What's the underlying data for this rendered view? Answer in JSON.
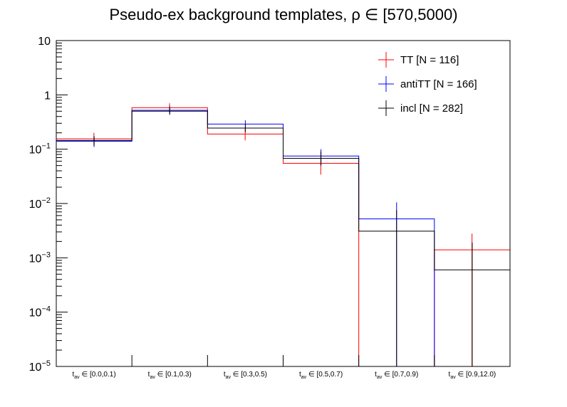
{
  "chart_data": {
    "type": "step-histogram",
    "title": "Pseudo-ex background templates, ρ ∈ [570,5000)",
    "yscale": "log",
    "ylim": [
      1e-05,
      10
    ],
    "y_tick_labels": [
      {
        "base": "10",
        "exp": ""
      },
      {
        "base": "1",
        "exp": ""
      },
      {
        "base": "10",
        "exp": "−1"
      },
      {
        "base": "10",
        "exp": "−2"
      },
      {
        "base": "10",
        "exp": "−3"
      },
      {
        "base": "10",
        "exp": "−4"
      },
      {
        "base": "10",
        "exp": "−5"
      }
    ],
    "y_tick_values": [
      10,
      1,
      0.1,
      0.01,
      0.001,
      0.0001,
      1e-05
    ],
    "categories": [
      {
        "var": "t",
        "sub": "av",
        "range": " ∈ [0.0,0.1)"
      },
      {
        "var": "t",
        "sub": "av",
        "range": " ∈ [0.1,0.3)"
      },
      {
        "var": "t",
        "sub": "av",
        "range": " ∈ [0.3,0.5)"
      },
      {
        "var": "t",
        "sub": "av",
        "range": " ∈ [0.5,0.7)"
      },
      {
        "var": "t",
        "sub": "av",
        "range": " ∈ [0.7,0.9)"
      },
      {
        "var": "t",
        "sub": "av",
        "range": " ∈ [0.9,12.0)"
      }
    ],
    "series": [
      {
        "name": "TT [N = 116]",
        "color": "#ff0000",
        "xoffset": -0.25,
        "values": [
          0.155,
          0.58,
          0.19,
          0.055,
          0.0,
          0.0014
        ],
        "err_low": [
          0.115,
          0.47,
          0.145,
          0.034,
          0.0,
          1e-05
        ],
        "err_high": [
          0.2,
          0.7,
          0.245,
          0.09,
          0.0,
          0.0028
        ]
      },
      {
        "name": "antiTT [N = 166]",
        "color": "#0000ff",
        "xoffset": 0.0,
        "values": [
          0.14,
          0.52,
          0.29,
          0.075,
          0.0052,
          0.0
        ],
        "err_low": [
          0.11,
          0.43,
          0.24,
          0.05,
          1e-05,
          0.0
        ],
        "err_high": [
          0.175,
          0.63,
          0.34,
          0.1,
          0.0105,
          0.0
        ]
      },
      {
        "name": "incl [N = 282]",
        "color": "#000000",
        "xoffset": 0.0,
        "values": [
          0.145,
          0.5,
          0.245,
          0.068,
          0.0031,
          0.0006
        ],
        "err_low": [
          0.12,
          0.44,
          0.205,
          0.05,
          1e-05,
          1e-05
        ],
        "err_high": [
          0.17,
          0.58,
          0.29,
          0.09,
          0.0075,
          0.0019
        ]
      }
    ],
    "legend_position": "top-right",
    "grid": false
  }
}
